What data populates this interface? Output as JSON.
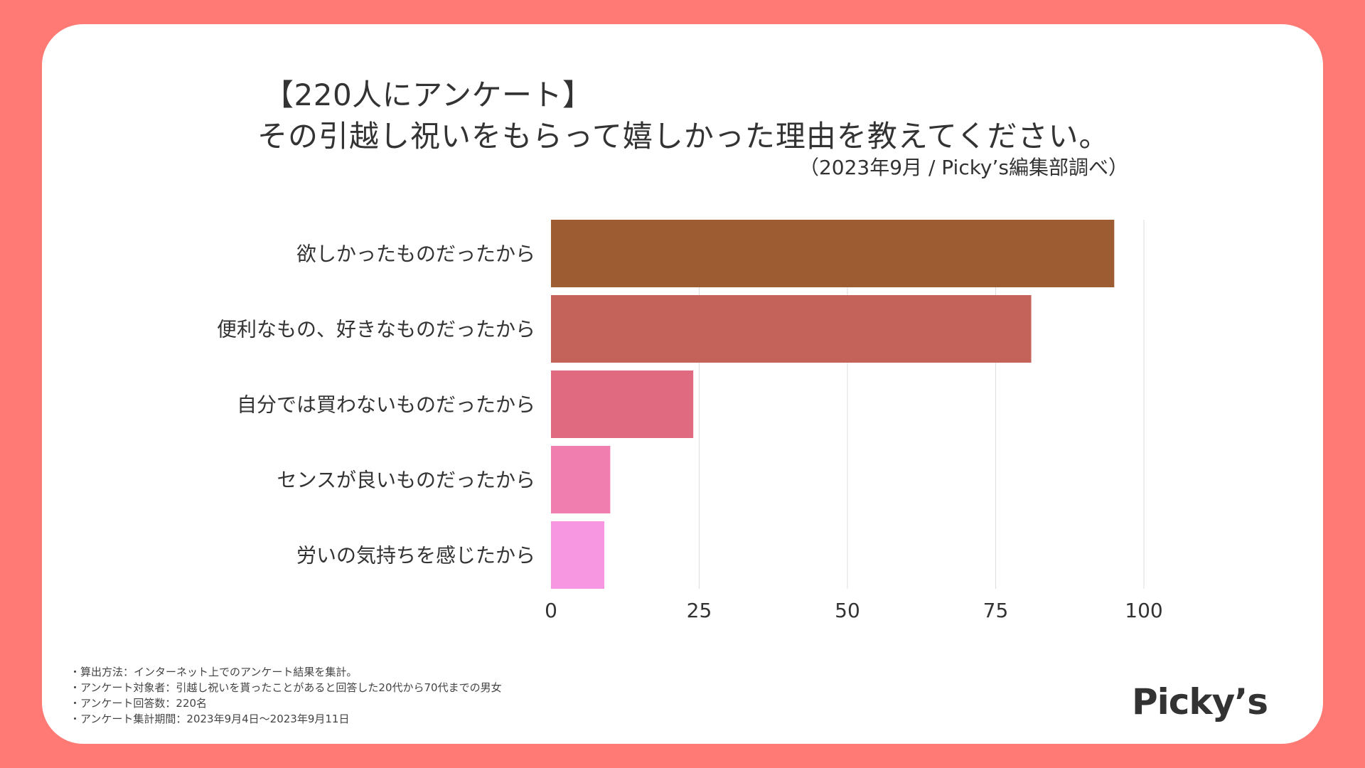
{
  "title": {
    "line1": "【220人にアンケート】",
    "line2": "その引越し祝いをもらって嬉しかった理由を教えてください。",
    "source": "（2023年9月 / Picky’s編集部調べ）"
  },
  "colors": {
    "background": "#FF7A74",
    "card": "#FFFFFF",
    "text": "#333333",
    "grid": "#DDDDDD"
  },
  "chart_data": {
    "type": "bar",
    "orientation": "horizontal",
    "categories": [
      "欲しかったものだったから",
      "便利なもの、好きなものだったから",
      "自分では買わないものだったから",
      "センスが良いものだったから",
      "労いの気持ちを感じたから"
    ],
    "values": [
      95,
      81,
      24,
      10,
      9
    ],
    "bar_colors": [
      "#9E5C33",
      "#C4635A",
      "#E06B80",
      "#F07FB0",
      "#F797E2"
    ],
    "xlim": [
      0,
      100
    ],
    "xticks": [
      0,
      25,
      50,
      75,
      100
    ],
    "grid": true,
    "xlabel": "",
    "ylabel": ""
  },
  "notes": [
    "・算出方法：インターネット上でのアンケート結果を集計。",
    "・アンケート対象者：引越し祝いを貰ったことがあると回答した20代から70代までの男女",
    "・アンケート回答数：220名",
    "・アンケート集計期間：2023年9月4日〜2023年9月11日"
  ],
  "logo": {
    "text": "Picky’s"
  }
}
